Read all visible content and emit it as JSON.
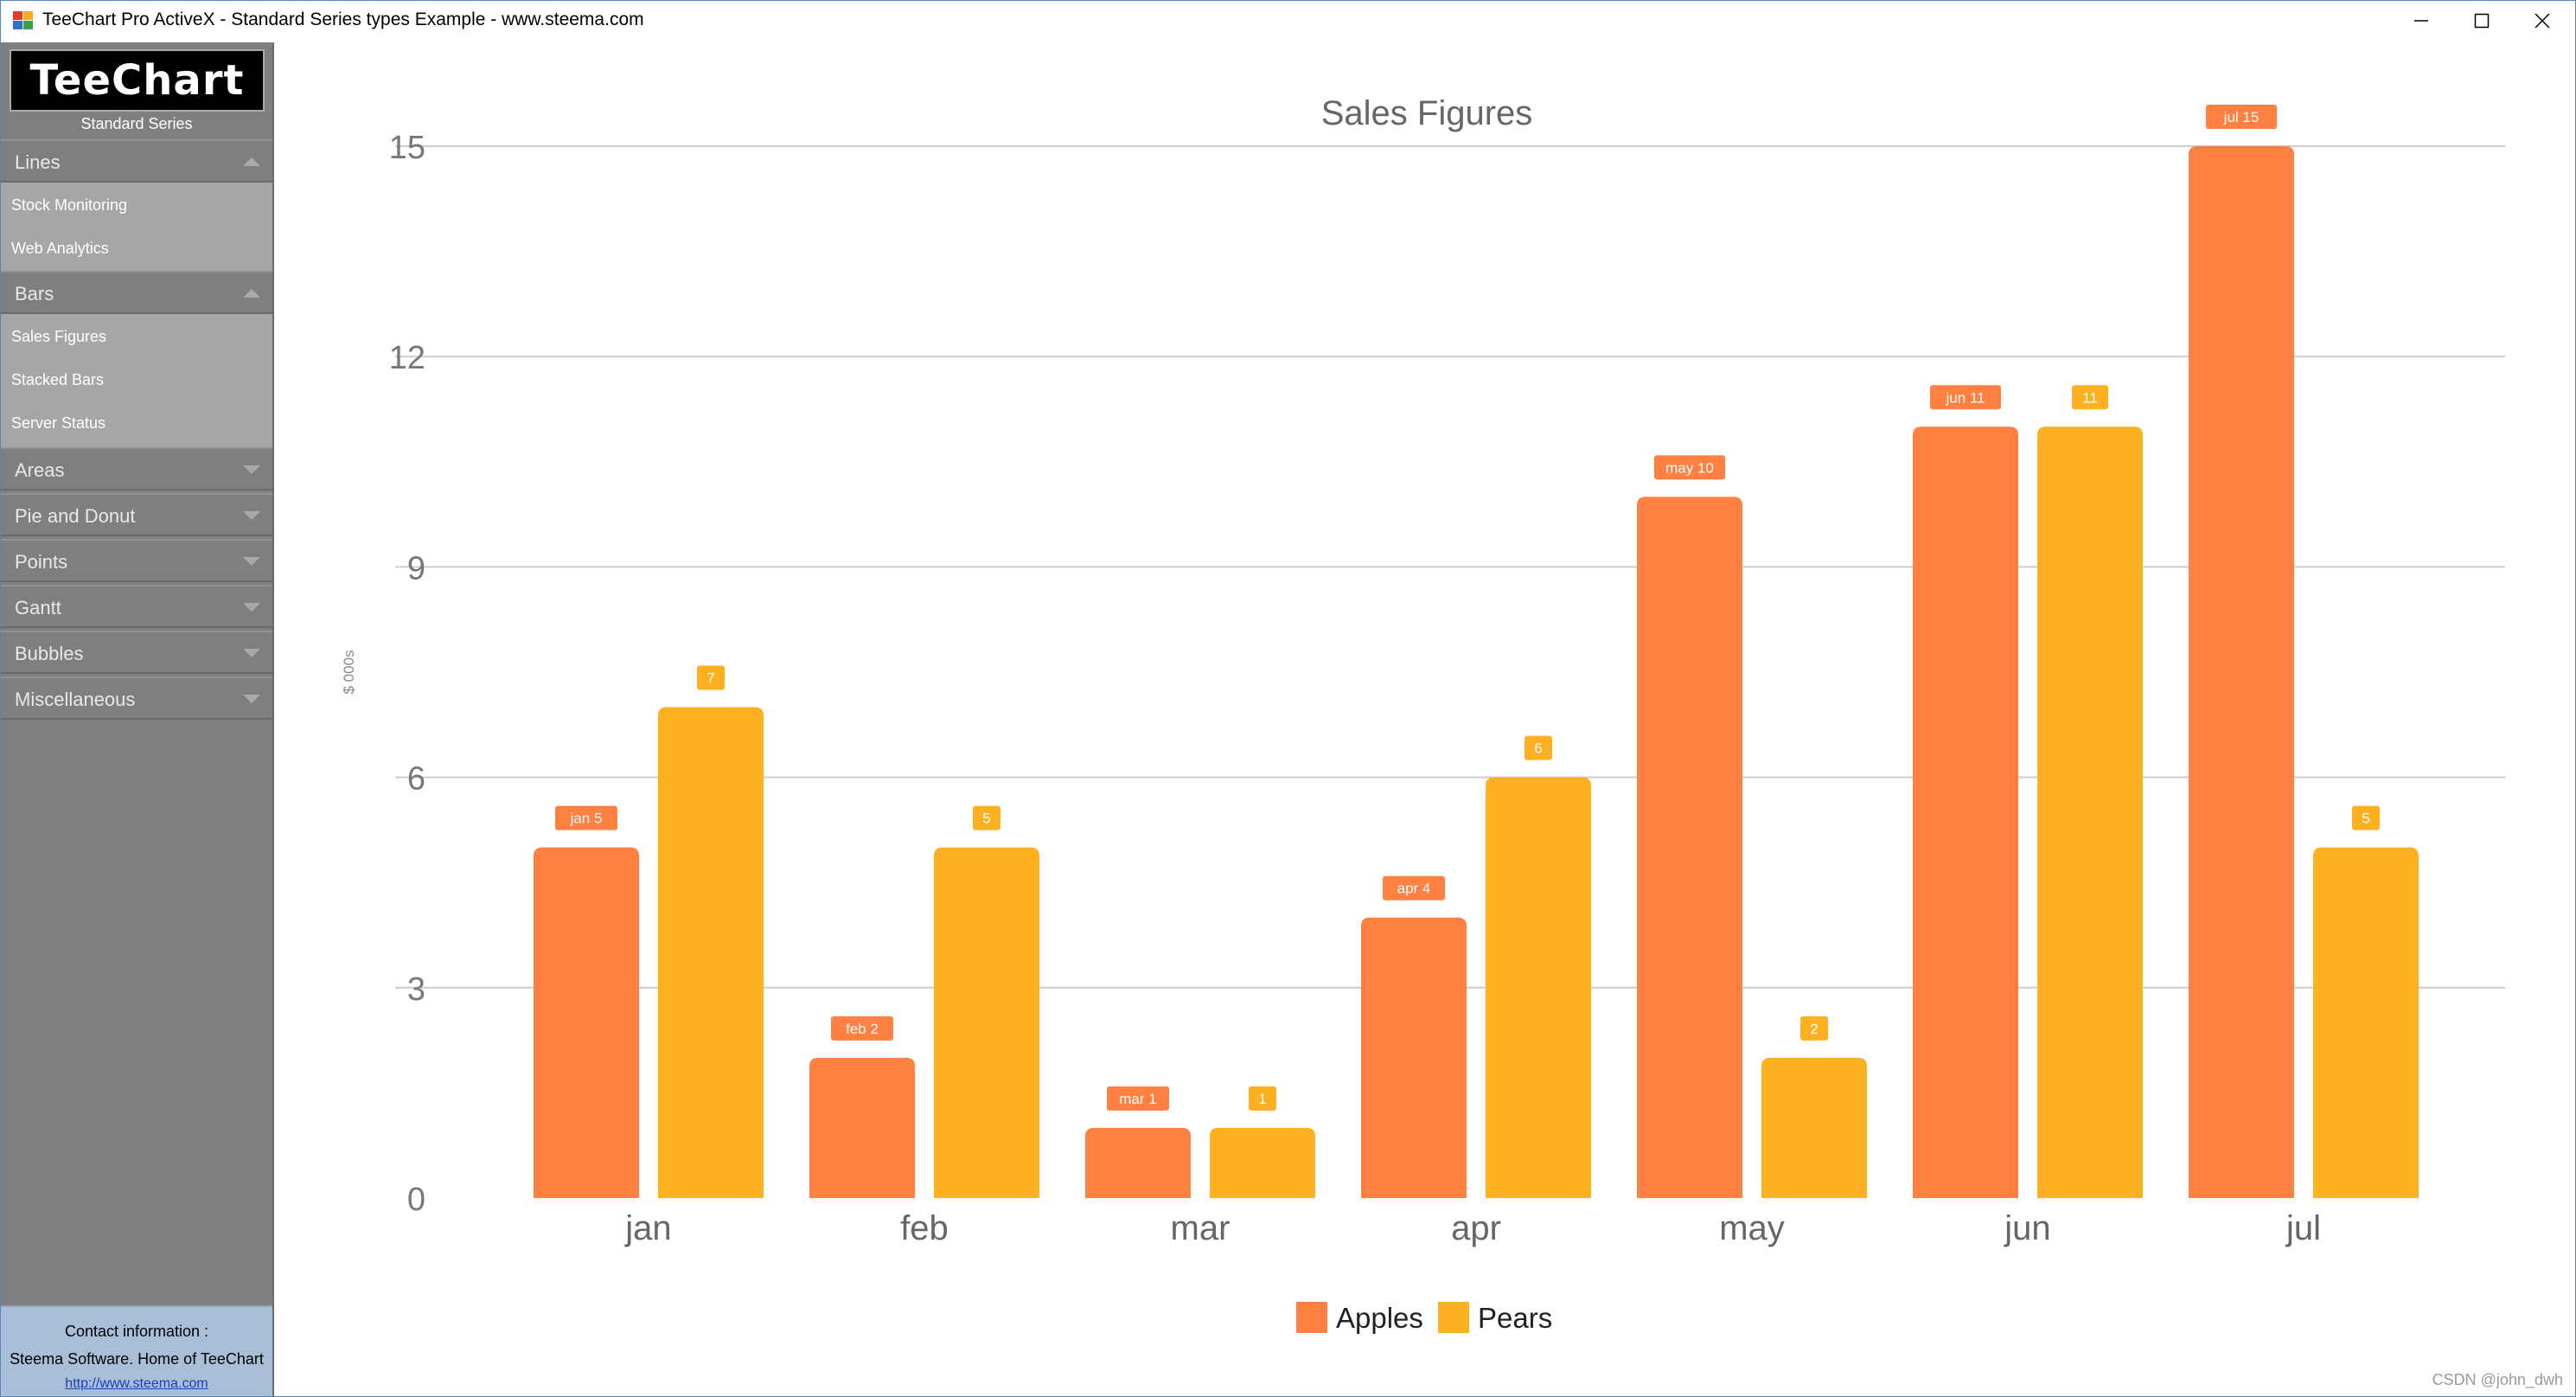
{
  "window": {
    "title": "TeeChart Pro ActiveX - Standard Series types Example - www.steema.com"
  },
  "sidebar": {
    "logo_text": "TeeChart",
    "subtitle": "Standard Series",
    "groups": [
      {
        "label": "Lines",
        "expanded": true,
        "items": [
          "Stock Monitoring",
          "Web Analytics"
        ]
      },
      {
        "label": "Bars",
        "expanded": true,
        "items": [
          "Sales Figures",
          "Stacked Bars",
          "Server Status"
        ]
      },
      {
        "label": "Areas",
        "expanded": false,
        "items": []
      },
      {
        "label": "Pie and Donut",
        "expanded": false,
        "items": []
      },
      {
        "label": "Points",
        "expanded": false,
        "items": []
      },
      {
        "label": "Gantt",
        "expanded": false,
        "items": []
      },
      {
        "label": "Bubbles",
        "expanded": false,
        "items": []
      },
      {
        "label": "Miscellaneous",
        "expanded": false,
        "items": []
      }
    ],
    "contact": {
      "heading": "Contact information :",
      "company": "Steema Software. Home of TeeChart",
      "link": "http://www.steema.com"
    }
  },
  "chart_data": {
    "type": "bar",
    "title": "Sales Figures",
    "xlabel": "",
    "ylabel": "$ 000s",
    "ylim": [
      0,
      15
    ],
    "yticks": [
      0,
      3,
      6,
      9,
      12,
      15
    ],
    "grid": true,
    "legend_position": "bottom",
    "categories": [
      "jan",
      "feb",
      "mar",
      "apr",
      "may",
      "jun",
      "jul"
    ],
    "series": [
      {
        "name": "Apples",
        "color": "#ff8040",
        "values": [
          5,
          2,
          1,
          4,
          10,
          11,
          15
        ],
        "labels": [
          "jan 5",
          "feb 2",
          "mar 1",
          "apr 4",
          "may 10",
          "jun 11",
          "jul 15"
        ]
      },
      {
        "name": "Pears",
        "color": "#fdb020",
        "values": [
          7,
          5,
          1,
          6,
          2,
          11,
          5
        ],
        "labels": [
          "7",
          "5",
          "1",
          "6",
          "2",
          "11",
          "5"
        ]
      }
    ]
  },
  "watermark": "CSDN @john_dwh"
}
